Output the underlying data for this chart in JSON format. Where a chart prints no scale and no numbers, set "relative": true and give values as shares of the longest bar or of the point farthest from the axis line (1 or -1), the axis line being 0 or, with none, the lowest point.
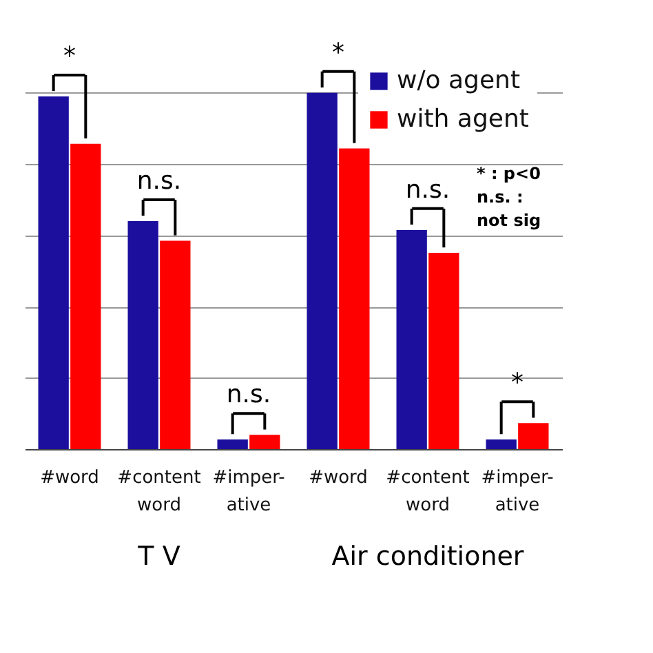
{
  "chart_data": {
    "type": "bar",
    "relative": true,
    "categories": [
      "#word",
      "#content\nword",
      "#imper-\native",
      "#word",
      "#content\nword",
      "#imper-\native"
    ],
    "series": [
      {
        "name": "w/o agent",
        "color": "#1c0f9e",
        "values": [
          0.99,
          0.64,
          0.027,
          1,
          0.615,
          0.027
        ]
      },
      {
        "name": "with agent",
        "color": "#ff0000",
        "values": [
          0.857,
          0.585,
          0.04,
          0.844,
          0.551,
          0.073
        ]
      }
    ],
    "annotations": [
      "*",
      "n.s.",
      "n.s.",
      "*",
      "n.s.",
      "*",
      "T V",
      "Air conditioner",
      "* : p<0",
      "n.s. :",
      "not sig"
    ],
    "grid": "y",
    "legend": "top right"
  }
}
